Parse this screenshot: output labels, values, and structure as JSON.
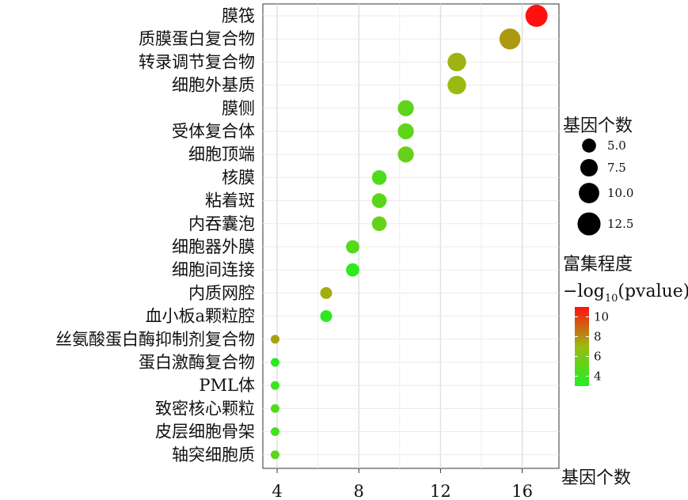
{
  "chart_data": {
    "type": "scatter",
    "title": "",
    "xlabel": "基因个数",
    "ylabel": "",
    "xlim": [
      3.3,
      17.8
    ],
    "x_ticks": [
      4,
      8,
      12,
      16
    ],
    "grid": true,
    "categories": [
      "膜筏",
      "质膜蛋白复合物",
      "转录调节复合物",
      "细胞外基质",
      "膜侧",
      "受体复合体",
      "细胞顶端",
      "核膜",
      "粘着斑",
      "内吞囊泡",
      "细胞器外膜",
      "细胞间连接",
      "内质网腔",
      "血小板a颗粒腔",
      "丝氨酸蛋白酶抑制剂复合物",
      "蛋白激酶复合物",
      "PML体",
      "致密核心颗粒",
      "皮层细胞骨架",
      "轴突细胞质"
    ],
    "points": [
      {
        "x": 16.7,
        "size": 16.7,
        "pvalue_log": 11.0
      },
      {
        "x": 15.4,
        "size": 15.4,
        "pvalue_log": 7.8
      },
      {
        "x": 12.8,
        "size": 12.8,
        "pvalue_log": 7.2
      },
      {
        "x": 12.8,
        "size": 12.8,
        "pvalue_log": 7.0
      },
      {
        "x": 10.3,
        "size": 10.3,
        "pvalue_log": 5.0
      },
      {
        "x": 10.3,
        "size": 10.3,
        "pvalue_log": 5.0
      },
      {
        "x": 10.3,
        "size": 10.3,
        "pvalue_log": 5.3
      },
      {
        "x": 9.0,
        "size": 9.0,
        "pvalue_log": 4.4
      },
      {
        "x": 9.0,
        "size": 9.0,
        "pvalue_log": 4.8
      },
      {
        "x": 9.0,
        "size": 9.0,
        "pvalue_log": 5.2
      },
      {
        "x": 7.7,
        "size": 7.7,
        "pvalue_log": 4.6
      },
      {
        "x": 7.7,
        "size": 7.7,
        "pvalue_log": 3.4
      },
      {
        "x": 6.4,
        "size": 6.4,
        "pvalue_log": 7.3
      },
      {
        "x": 6.4,
        "size": 6.4,
        "pvalue_log": 3.4
      },
      {
        "x": 3.9,
        "size": 3.9,
        "pvalue_log": 7.6
      },
      {
        "x": 3.9,
        "size": 3.9,
        "pvalue_log": 3.2
      },
      {
        "x": 3.9,
        "size": 3.9,
        "pvalue_log": 3.9
      },
      {
        "x": 3.9,
        "size": 3.9,
        "pvalue_log": 4.5
      },
      {
        "x": 3.9,
        "size": 3.9,
        "pvalue_log": 4.0
      },
      {
        "x": 3.9,
        "size": 3.9,
        "pvalue_log": 4.8
      }
    ],
    "size_legend": {
      "title": "基因个数",
      "entries": [
        {
          "value": 5.0,
          "label": "5.0"
        },
        {
          "value": 7.5,
          "label": "7.5"
        },
        {
          "value": 10.0,
          "label": "10.0"
        },
        {
          "value": 12.5,
          "label": "12.5"
        }
      ]
    },
    "color_legend": {
      "title": "富集程度",
      "subtitle_prefix": "−log",
      "subtitle_sub": "10",
      "subtitle_suffix": "(pvalue)",
      "range": [
        3,
        11
      ],
      "ticks": [
        {
          "value": 10,
          "label": "10"
        },
        {
          "value": 8,
          "label": "8"
        },
        {
          "value": 6,
          "label": "6"
        },
        {
          "value": 4,
          "label": "4"
        }
      ],
      "colors": {
        "low": "#22ee22",
        "mid": "#99bb11",
        "high": "#ff1111"
      }
    }
  }
}
